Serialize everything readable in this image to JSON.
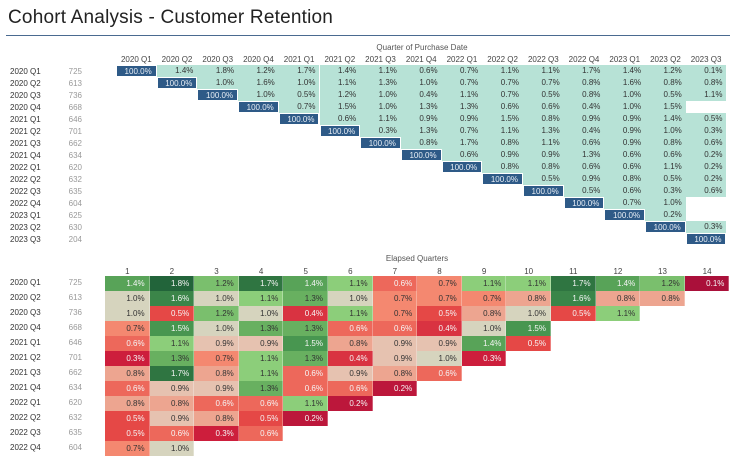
{
  "title": "Cohort Analysis - Customer Retention",
  "chart_data": [
    {
      "type": "heatmap",
      "title": "Quarter of Purchase Date",
      "columns": [
        "2020 Q1",
        "2020 Q2",
        "2020 Q3",
        "2020 Q4",
        "2021 Q1",
        "2021 Q2",
        "2021 Q3",
        "2021 Q4",
        "2022 Q1",
        "2022 Q2",
        "2022 Q3",
        "2022 Q4",
        "2023 Q1",
        "2023 Q2",
        "2023 Q3"
      ],
      "rows": [
        {
          "label": "2020 Q1",
          "count": 725,
          "values": [
            100.0,
            1.4,
            1.8,
            1.2,
            1.7,
            1.4,
            1.1,
            0.6,
            0.7,
            1.1,
            1.1,
            1.7,
            1.4,
            1.2,
            0.1
          ]
        },
        {
          "label": "2020 Q2",
          "count": 613,
          "values": [
            null,
            100.0,
            1.0,
            1.6,
            1.0,
            1.1,
            1.3,
            1.0,
            0.7,
            0.7,
            0.7,
            0.8,
            1.6,
            0.8,
            0.8
          ]
        },
        {
          "label": "2020 Q3",
          "count": 736,
          "values": [
            null,
            null,
            100.0,
            1.0,
            0.5,
            1.2,
            1.0,
            0.4,
            1.1,
            0.7,
            0.5,
            0.8,
            1.0,
            0.5,
            1.1
          ]
        },
        {
          "label": "2020 Q4",
          "count": 668,
          "values": [
            null,
            null,
            null,
            100.0,
            0.7,
            1.5,
            1.0,
            1.3,
            1.3,
            0.6,
            0.6,
            0.4,
            1.0,
            1.5,
            null
          ]
        },
        {
          "label": "2021 Q1",
          "count": 646,
          "values": [
            null,
            null,
            null,
            null,
            100.0,
            0.6,
            1.1,
            0.9,
            0.9,
            1.5,
            0.8,
            0.9,
            0.9,
            1.4,
            0.5
          ]
        },
        {
          "label": "2021 Q2",
          "count": 701,
          "values": [
            null,
            null,
            null,
            null,
            null,
            100.0,
            0.3,
            1.3,
            0.7,
            1.1,
            1.3,
            0.4,
            0.9,
            1.0,
            0.3
          ]
        },
        {
          "label": "2021 Q3",
          "count": 662,
          "values": [
            null,
            null,
            null,
            null,
            null,
            null,
            100.0,
            0.8,
            1.7,
            0.8,
            1.1,
            0.6,
            0.9,
            0.8,
            0.6
          ]
        },
        {
          "label": "2021 Q4",
          "count": 634,
          "values": [
            null,
            null,
            null,
            null,
            null,
            null,
            null,
            100.0,
            0.6,
            0.9,
            0.9,
            1.3,
            0.6,
            0.6,
            0.2
          ]
        },
        {
          "label": "2022 Q1",
          "count": 620,
          "values": [
            null,
            null,
            null,
            null,
            null,
            null,
            null,
            null,
            100.0,
            0.8,
            0.8,
            0.6,
            0.6,
            1.1,
            0.2
          ]
        },
        {
          "label": "2022 Q2",
          "count": 632,
          "values": [
            null,
            null,
            null,
            null,
            null,
            null,
            null,
            null,
            null,
            100.0,
            0.5,
            0.9,
            0.8,
            0.5,
            0.2
          ]
        },
        {
          "label": "2022 Q3",
          "count": 635,
          "values": [
            null,
            null,
            null,
            null,
            null,
            null,
            null,
            null,
            null,
            null,
            100.0,
            0.5,
            0.6,
            0.3,
            0.6
          ]
        },
        {
          "label": "2022 Q4",
          "count": 604,
          "values": [
            null,
            null,
            null,
            null,
            null,
            null,
            null,
            null,
            null,
            null,
            null,
            100.0,
            0.7,
            1.0,
            null
          ]
        },
        {
          "label": "2023 Q1",
          "count": 625,
          "values": [
            null,
            null,
            null,
            null,
            null,
            null,
            null,
            null,
            null,
            null,
            null,
            null,
            100.0,
            0.2,
            null
          ]
        },
        {
          "label": "2023 Q2",
          "count": 630,
          "values": [
            null,
            null,
            null,
            null,
            null,
            null,
            null,
            null,
            null,
            null,
            null,
            null,
            null,
            100.0,
            0.3
          ]
        },
        {
          "label": "2023 Q3",
          "count": 204,
          "values": [
            null,
            null,
            null,
            null,
            null,
            null,
            null,
            null,
            null,
            null,
            null,
            null,
            null,
            null,
            100.0
          ]
        }
      ],
      "unit": "%"
    },
    {
      "type": "heatmap",
      "title": "Elapsed Quarters",
      "columns": [
        "1",
        "2",
        "3",
        "4",
        "5",
        "6",
        "7",
        "8",
        "9",
        "10",
        "11",
        "12",
        "13",
        "14"
      ],
      "rows": [
        {
          "label": "2020 Q1",
          "count": 725,
          "values": [
            1.4,
            1.8,
            1.2,
            1.7,
            1.4,
            1.1,
            0.6,
            0.7,
            1.1,
            1.1,
            1.7,
            1.4,
            1.2,
            0.1
          ]
        },
        {
          "label": "2020 Q2",
          "count": 613,
          "values": [
            1.0,
            1.6,
            1.0,
            1.1,
            1.3,
            1.0,
            0.7,
            0.7,
            0.7,
            0.8,
            1.6,
            0.8,
            0.8
          ]
        },
        {
          "label": "2020 Q3",
          "count": 736,
          "values": [
            1.0,
            0.5,
            1.2,
            1.0,
            0.4,
            1.1,
            0.7,
            0.5,
            0.8,
            1.0,
            0.5,
            1.1
          ]
        },
        {
          "label": "2020 Q4",
          "count": 668,
          "values": [
            0.7,
            1.5,
            1.0,
            1.3,
            1.3,
            0.6,
            0.6,
            0.4,
            1.0,
            1.5
          ]
        },
        {
          "label": "2021 Q1",
          "count": 646,
          "values": [
            0.6,
            1.1,
            0.9,
            0.9,
            1.5,
            0.8,
            0.9,
            0.9,
            1.4,
            0.5
          ]
        },
        {
          "label": "2021 Q2",
          "count": 701,
          "values": [
            0.3,
            1.3,
            0.7,
            1.1,
            1.3,
            0.4,
            0.9,
            1.0,
            0.3
          ]
        },
        {
          "label": "2021 Q3",
          "count": 662,
          "values": [
            0.8,
            1.7,
            0.8,
            1.1,
            0.6,
            0.9,
            0.8,
            0.6
          ]
        },
        {
          "label": "2021 Q4",
          "count": 634,
          "values": [
            0.6,
            0.9,
            0.9,
            1.3,
            0.6,
            0.6,
            0.2
          ]
        },
        {
          "label": "2022 Q1",
          "count": 620,
          "values": [
            0.8,
            0.8,
            0.6,
            0.6,
            1.1,
            0.2
          ]
        },
        {
          "label": "2022 Q2",
          "count": 632,
          "values": [
            0.5,
            0.9,
            0.8,
            0.5,
            0.2
          ]
        },
        {
          "label": "2022 Q3",
          "count": 635,
          "values": [
            0.5,
            0.6,
            0.3,
            0.6
          ]
        },
        {
          "label": "2022 Q4",
          "count": 604,
          "values": [
            0.7,
            1.0
          ]
        }
      ],
      "unit": "%"
    }
  ],
  "colors": {
    "diagonal": "#2e5a87",
    "retained": "#b7e2d6",
    "rule": "#4a6a90"
  }
}
